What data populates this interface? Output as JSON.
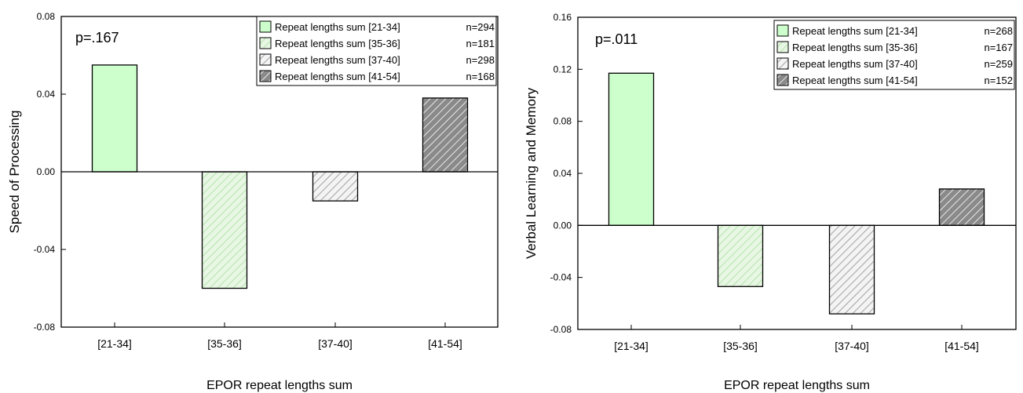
{
  "chart_data": [
    {
      "type": "bar",
      "annotation": "p=.167",
      "xlabel": "EPOR repeat lengths sum",
      "ylabel": "Speed of Processing",
      "ylim": [
        -0.08,
        0.08
      ],
      "yticks": [
        "0.08",
        "0.04",
        "0.00",
        "-0.04",
        "-0.08"
      ],
      "ytick_values": [
        0.08,
        0.04,
        0.0,
        -0.04,
        -0.08
      ],
      "categories": [
        "[21-34]",
        "[35-36]",
        "[37-40]",
        "[41-54]"
      ],
      "values": [
        0.055,
        -0.06,
        -0.015,
        0.038
      ],
      "legend_position": "top-right",
      "legend": [
        {
          "label": "Repeat lengths sum [21-34]",
          "n": "n=294"
        },
        {
          "label": "Repeat lengths sum [35-36]",
          "n": "n=181"
        },
        {
          "label": "Repeat lengths sum [37-40]",
          "n": "n=298"
        },
        {
          "label": "Repeat lengths sum [41-54]",
          "n": "n=168"
        }
      ]
    },
    {
      "type": "bar",
      "annotation": "p=.011",
      "xlabel": "EPOR repeat lengths sum",
      "ylabel": "Verbal Learning and Memory",
      "ylim": [
        -0.08,
        0.16
      ],
      "yticks": [
        "0.16",
        "0.12",
        "0.08",
        "0.04",
        "0.00",
        "-0.04",
        "-0.08"
      ],
      "ytick_values": [
        0.16,
        0.12,
        0.08,
        0.04,
        0.0,
        -0.04,
        -0.08
      ],
      "categories": [
        "[21-34]",
        "[35-36]",
        "[37-40]",
        "[41-54]"
      ],
      "values": [
        0.117,
        -0.047,
        -0.068,
        0.028
      ],
      "legend_position": "top-right",
      "legend": [
        {
          "label": "Repeat lengths sum [21-34]",
          "n": "n=268"
        },
        {
          "label": "Repeat lengths sum [35-36]",
          "n": "n=167"
        },
        {
          "label": "Repeat lengths sum [37-40]",
          "n": "n=259"
        },
        {
          "label": "Repeat lengths sum [41-54]",
          "n": "n=152"
        }
      ]
    }
  ],
  "styles": {
    "fills": [
      "#ccffcc",
      "#e8f7e4",
      "#f2f2f2",
      "#8a8a8a"
    ],
    "hatch_colors": [
      null,
      "#b8e4b0",
      "#a8a8a8",
      "#ffffff"
    ],
    "axis_color": "#000000"
  }
}
